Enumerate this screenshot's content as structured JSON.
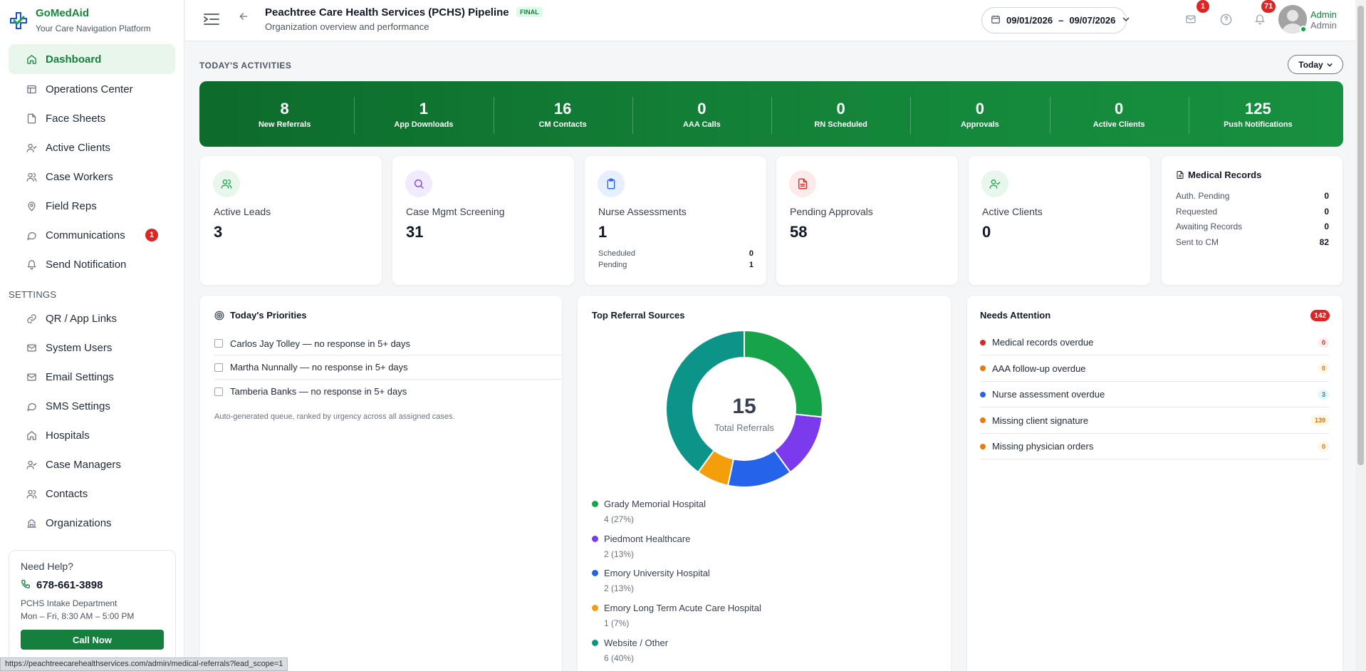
{
  "brand": {
    "name": "GoMedAid",
    "tagline": "Your Care Navigation Platform"
  },
  "sidebar": {
    "items": [
      {
        "label": "Dashboard",
        "icon": "home-icon",
        "active": true
      },
      {
        "label": "Operations Center",
        "icon": "layout-icon"
      },
      {
        "label": "Face Sheets",
        "icon": "file-icon"
      },
      {
        "label": "Active Clients",
        "icon": "user-check-icon"
      },
      {
        "label": "Case Workers",
        "icon": "users-icon"
      },
      {
        "label": "Field Reps",
        "icon": "map-pin-icon"
      },
      {
        "label": "Communications",
        "icon": "chat-icon",
        "badge": "1"
      },
      {
        "label": "Send Notification",
        "icon": "bell-icon"
      }
    ],
    "settings_label": "SETTINGS",
    "settings_items": [
      {
        "label": "QR / App Links",
        "icon": "link-icon"
      },
      {
        "label": "System Users",
        "icon": "mail-icon"
      },
      {
        "label": "Email Settings",
        "icon": "mail-icon"
      },
      {
        "label": "SMS Settings",
        "icon": "chat-icon"
      },
      {
        "label": "Hospitals",
        "icon": "home-icon"
      },
      {
        "label": "Case Managers",
        "icon": "user-check-icon"
      },
      {
        "label": "Contacts",
        "icon": "users-icon"
      },
      {
        "label": "Organizations",
        "icon": "building-icon"
      }
    ]
  },
  "help": {
    "title": "Need Help?",
    "phone": "678-661-3898",
    "department": "PCHS Intake Department",
    "hours": "Mon – Fri, 8:30 AM – 5:00 PM",
    "button": "Call Now"
  },
  "status_url": "https://peachtreecarehealthservices.com/admin/medical-referrals?lead_scope=1",
  "header": {
    "title": "Peachtree Care Health Services (PCHS) Pipeline",
    "badge": "FINAL",
    "subtitle": "Organization overview and performance",
    "date_from": "09/01/2026",
    "date_sep": "–",
    "date_to": "09/07/2026",
    "mail_badge": "1",
    "bell_badge": "71",
    "user_name": "Admin",
    "user_role": "Admin"
  },
  "activities": {
    "title": "TODAY'S ACTIVITIES",
    "filter": "Today",
    "stats": [
      {
        "value": "8",
        "label": "New Referrals"
      },
      {
        "value": "1",
        "label": "App Downloads"
      },
      {
        "value": "16",
        "label": "CM Contacts"
      },
      {
        "value": "0",
        "label": "AAA Calls"
      },
      {
        "value": "0",
        "label": "RN Scheduled"
      },
      {
        "value": "0",
        "label": "Approvals"
      },
      {
        "value": "0",
        "label": "Active Clients"
      },
      {
        "value": "125",
        "label": "Push Notifications"
      }
    ]
  },
  "kpis": [
    {
      "label": "Active Leads",
      "value": "3",
      "icon": "users-icon",
      "color": "#16a34a",
      "bg": "#e8f6ec"
    },
    {
      "label": "Case Mgmt Screening",
      "value": "31",
      "icon": "search-icon",
      "color": "#7c3aed",
      "bg": "#f1ebfd"
    },
    {
      "label": "Nurse Assessments",
      "value": "1",
      "icon": "clipboard-icon",
      "color": "#2563eb",
      "bg": "#e6efff",
      "rows": [
        {
          "label": "Scheduled",
          "value": "0"
        },
        {
          "label": "Pending",
          "value": "1"
        }
      ]
    },
    {
      "label": "Pending Approvals",
      "value": "58",
      "icon": "file-text-icon",
      "color": "#dc2626",
      "bg": "#fdeaea"
    },
    {
      "label": "Active Clients",
      "value": "0",
      "icon": "user-check-icon",
      "color": "#16a34a",
      "bg": "#e8f6ec"
    }
  ],
  "medical_records": {
    "title": "Medical Records",
    "rows": [
      {
        "label": "Auth. Pending",
        "value": "0"
      },
      {
        "label": "Requested",
        "value": "0"
      },
      {
        "label": "Awaiting Records",
        "value": "0"
      },
      {
        "label": "Sent to CM",
        "value": "82"
      }
    ]
  },
  "priorities": {
    "title": "Today's Priorities",
    "items": [
      "Carlos Jay Tolley — no response in 5+ days",
      "Martha Nunnally — no response in 5+ days",
      "Tamberia Banks — no response in 5+ days"
    ],
    "note": "Auto-generated queue, ranked by urgency across all assigned cases."
  },
  "referrals": {
    "title": "Top Referral Sources",
    "total": "15",
    "total_label": "Total Referrals",
    "sources": [
      {
        "name": "Grady Memorial Hospital",
        "detail": "4 (27%)",
        "count": 4,
        "color": "#16a34a"
      },
      {
        "name": "Piedmont Healthcare",
        "detail": "2 (13%)",
        "count": 2,
        "color": "#7c3aed"
      },
      {
        "name": "Emory University Hospital",
        "detail": "2 (13%)",
        "count": 2,
        "color": "#2563eb"
      },
      {
        "name": "Emory Long Term Acute Care Hospital",
        "detail": "1 (7%)",
        "count": 1,
        "color": "#f59e0b"
      },
      {
        "name": "Website / Other",
        "detail": "6 (40%)",
        "count": 6,
        "color": "#0d9488"
      }
    ]
  },
  "attention": {
    "title": "Needs Attention",
    "total": "142",
    "items": [
      {
        "label": "Medical records overdue",
        "count": "0",
        "dot": "#dc2626",
        "fg": "#dc2626",
        "bg": "#fdecec"
      },
      {
        "label": "AAA follow-up overdue",
        "count": "0",
        "dot": "#ea7a0c",
        "fg": "#d97706",
        "bg": "#fef5e2"
      },
      {
        "label": "Nurse assessment overdue",
        "count": "3",
        "dot": "#2563eb",
        "fg": "#0891b2",
        "bg": "#e3f6fa"
      },
      {
        "label": "Missing client signature",
        "count": "139",
        "dot": "#ea7a0c",
        "fg": "#d97706",
        "bg": "#fef5e2"
      },
      {
        "label": "Missing physician orders",
        "count": "0",
        "dot": "#ea7a0c",
        "fg": "#d97706",
        "bg": "#fef5e2"
      }
    ]
  }
}
